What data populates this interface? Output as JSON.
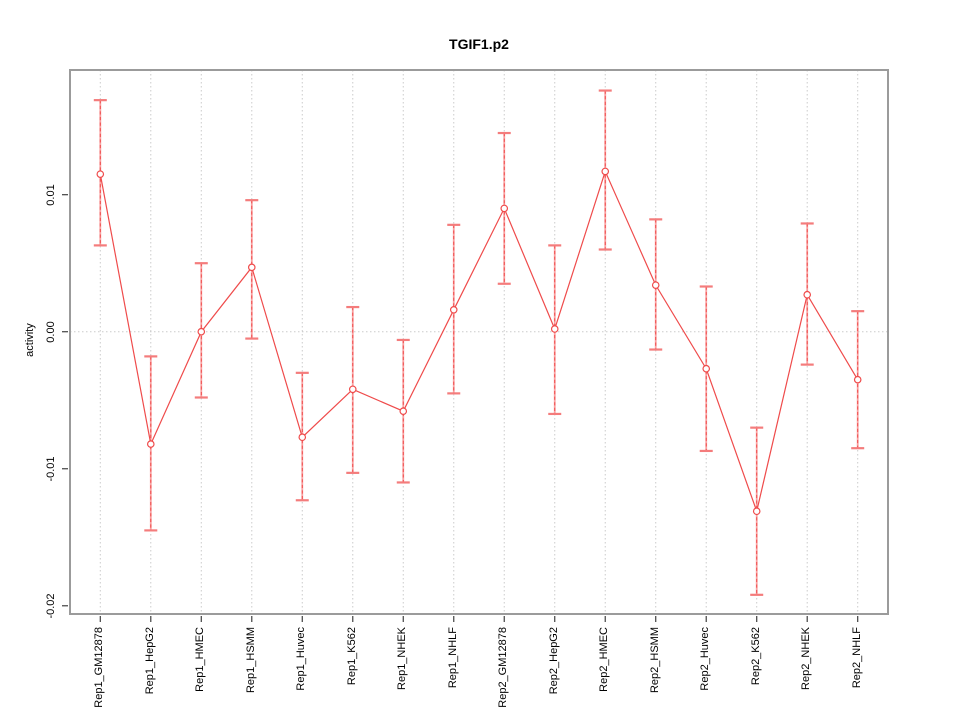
{
  "header": {
    "title": "TGIF1.p2"
  },
  "chart_data": {
    "type": "line",
    "title": "TGIF1.p2",
    "xlabel": "",
    "ylabel": "activity",
    "legend": null,
    "grid": "dotted vertical gridline at each category; dotted horizontal line at y=0",
    "categories": [
      "Rep1_GM12878",
      "Rep1_HepG2",
      "Rep1_HMEC",
      "Rep1_HSMM",
      "Rep1_Huvec",
      "Rep1_K562",
      "Rep1_NHEK",
      "Rep1_NHLF",
      "Rep2_GM12878",
      "Rep2_HepG2",
      "Rep2_HMEC",
      "Rep2_HSMM",
      "Rep2_Huvec",
      "Rep2_K562",
      "Rep2_NHEK",
      "Rep2_NHLF"
    ],
    "series": [
      {
        "name": "activity",
        "values": [
          0.0115,
          -0.0082,
          0.0,
          0.0047,
          -0.0077,
          -0.0042,
          -0.0058,
          0.0016,
          0.009,
          0.0002,
          0.0117,
          0.0034,
          -0.0027,
          -0.0131,
          0.0027,
          -0.0035
        ]
      }
    ],
    "error_upper": [
      0.0169,
      -0.0018,
      0.005,
      0.0096,
      -0.003,
      0.0018,
      -0.0006,
      0.0078,
      0.0145,
      0.0063,
      0.0176,
      0.0082,
      0.0033,
      -0.007,
      0.0079,
      0.0015
    ],
    "error_lower": [
      0.0063,
      -0.0145,
      -0.0048,
      -0.0005,
      -0.0123,
      -0.0103,
      -0.011,
      -0.0045,
      0.0035,
      -0.006,
      0.006,
      -0.0013,
      -0.0087,
      -0.0192,
      -0.0024,
      -0.0085
    ],
    "yticks": [
      0.01,
      0.0,
      -0.01,
      -0.02
    ],
    "ytick_labels": [
      "0.01",
      "0.00",
      "-0.01",
      "-0.02"
    ],
    "ylim": [
      -0.0206,
      0.0191
    ],
    "marker": "open-circle",
    "colors": {
      "line": "#ef4b4b",
      "errorbar_light": "#f9a1a1",
      "cap": "#f47c7c",
      "grid": "#cbcbcb",
      "box": "#9b9b9b",
      "tick": "#404040",
      "text": "#000000"
    }
  }
}
